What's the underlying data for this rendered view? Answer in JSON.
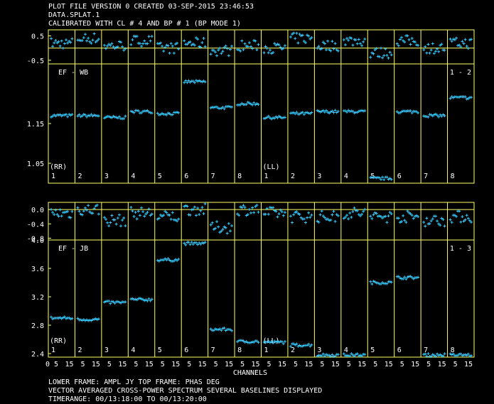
{
  "header": {
    "line1": "PLOT FILE VERSION 0  CREATED 03-SEP-2015 23:46:53",
    "line2": "DATA.SPLAT.1",
    "line3": "CALIBRATED WITH CL # 4 AND BP # 1 (BP MODE 1)"
  },
  "footer": {
    "line1": "LOWER FRAME: AMPL JY    TOP FRAME: PHAS DEG",
    "line2": "VECTOR AVERAGED CROSS-POWER SPECTRUM     SEVERAL BASELINES DISPLAYED",
    "line3": "TIMERANGE: 00/13:18:00 TO 00/13:20:00"
  },
  "colors": {
    "frame": "#ffff66",
    "points": "#33ccff",
    "text": "#ffffff",
    "background": "#000000"
  },
  "chart_data": [
    {
      "type": "scatter",
      "baseline_label": "EF - WB",
      "baseline_number": "1 - 2",
      "xlabel": "CHANNELS",
      "x_ticks": [
        "0",
        "5",
        "15"
      ],
      "panels": [
        "1",
        "2",
        "3",
        "4",
        "5",
        "6",
        "7",
        "8",
        "1",
        "2",
        "3",
        "4",
        "5",
        "6",
        "7",
        "8"
      ],
      "pol_labels": [
        "(RR)",
        "(LL)"
      ],
      "phase": {
        "ylim": [
          -0.65,
          0.75
        ],
        "yticks": [
          0.5,
          -0.5
        ],
        "ytick_labels": [
          "0.5",
          "-0.5"
        ],
        "means": [
          0.2,
          0.4,
          0.1,
          0.3,
          0.0,
          0.2,
          -0.1,
          0.1,
          0.0,
          0.4,
          0.1,
          0.3,
          -0.2,
          0.3,
          0.0,
          0.2
        ]
      },
      "amplitude": {
        "ylim": [
          1.0,
          1.3
        ],
        "yticks": [
          1.15,
          1.05
        ],
        "ytick_labels": [
          "1.15",
          "1.05"
        ],
        "means": [
          1.17,
          1.17,
          1.165,
          1.18,
          1.175,
          1.255,
          1.19,
          1.2,
          1.165,
          1.175,
          1.18,
          1.18,
          1.012,
          1.18,
          1.17,
          1.215
        ]
      }
    },
    {
      "type": "scatter",
      "baseline_label": "EF - JB",
      "baseline_number": "1 - 3",
      "xlabel": "CHANNELS",
      "x_ticks": [
        "0",
        "5",
        "15"
      ],
      "panels": [
        "1",
        "2",
        "3",
        "4",
        "5",
        "6",
        "7",
        "8",
        "1",
        "2",
        "3",
        "4",
        "5",
        "6",
        "7",
        "8"
      ],
      "pol_labels": [
        "(RR)",
        "(LL)"
      ],
      "phase": {
        "ylim": [
          -0.85,
          0.2
        ],
        "yticks": [
          0.0,
          -0.4,
          -0.8
        ],
        "ytick_labels": [
          "0.0",
          "-0.4",
          "-0.8"
        ],
        "means": [
          -0.1,
          0.0,
          -0.3,
          -0.1,
          -0.2,
          0.0,
          -0.5,
          0.0,
          -0.1,
          -0.2,
          -0.2,
          -0.1,
          -0.2,
          -0.2,
          -0.3,
          -0.2
        ]
      },
      "amplitude": {
        "ylim": [
          2.35,
          4.0
        ],
        "yticks": [
          4.0,
          3.6,
          3.2,
          2.8,
          2.4
        ],
        "ytick_labels": [
          "4.0",
          "3.6",
          "3.2",
          "2.8",
          "2.4"
        ],
        "means": [
          2.9,
          2.88,
          3.12,
          3.16,
          3.72,
          3.95,
          2.74,
          2.57,
          2.56,
          2.52,
          2.38,
          2.38,
          3.4,
          3.47,
          2.38,
          2.38
        ]
      }
    }
  ]
}
